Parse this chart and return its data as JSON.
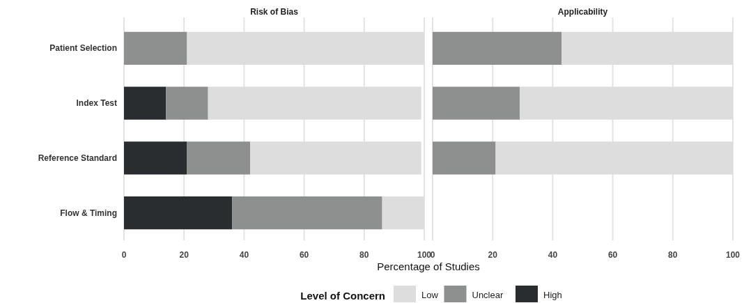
{
  "chart_data": [
    {
      "type": "bar",
      "title": "Risk of Bias",
      "orientation": "horizontal",
      "stacked": true,
      "categories": [
        "Patient Selection",
        "Index Test",
        "Reference Standard",
        "Flow & Timing"
      ],
      "xlabel": "Percentage of Studies",
      "legend_title": "Level of Concern",
      "legend": "bottom",
      "grid": "x",
      "xlim": [
        0,
        100
      ],
      "xticks": [
        0,
        20,
        40,
        60,
        80,
        100
      ],
      "series": [
        {
          "name": "High",
          "color": "#2a2d2f",
          "values": [
            0,
            14,
            21,
            36
          ]
        },
        {
          "name": "Unclear",
          "color": "#8e9090",
          "values": [
            21,
            14,
            21,
            50
          ]
        },
        {
          "name": "Low",
          "color": "#dcdddc",
          "values": [
            79,
            71,
            57,
            14
          ]
        }
      ]
    },
    {
      "type": "bar",
      "title": "Applicability",
      "orientation": "horizontal",
      "stacked": true,
      "categories": [
        null,
        null,
        null,
        null
      ],
      "tick_labels": "x",
      "grid": "x",
      "xlim": [
        0,
        100
      ],
      "xticks": [
        0,
        20,
        40,
        60,
        80,
        100
      ],
      "series": [
        {
          "color": "#2a2d2f",
          "values": [
            0,
            0,
            0,
            null
          ]
        },
        {
          "color": "#8e9090",
          "values": [
            43,
            29,
            21,
            null
          ]
        },
        {
          "color": "#dcdddc",
          "values": [
            57,
            71,
            79,
            null
          ]
        }
      ]
    }
  ]
}
